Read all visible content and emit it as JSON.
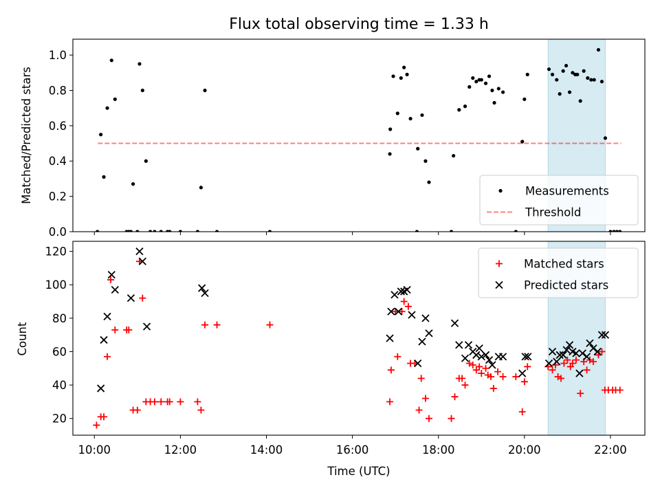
{
  "chart_data": [
    {
      "type": "scatter",
      "title": "Flux total observing time = 1.33 h",
      "xlabel": "",
      "ylabel": "Matched/Predicted stars",
      "xlim": [
        9.5,
        22.8
      ],
      "ylim": [
        0,
        1.09
      ],
      "yticks": [
        "0.0",
        "0.2",
        "0.4",
        "0.6",
        "0.8",
        "1.0"
      ],
      "grid": false,
      "legend_position": "lower-right",
      "shaded_span": {
        "x": [
          20.55,
          21.88
        ],
        "color": "#add8e6"
      },
      "threshold": {
        "name": "Threshold",
        "y": 0.5,
        "x": [
          10.08,
          22.25
        ],
        "color": "#ff0000",
        "style": "dashed"
      },
      "series": [
        {
          "name": "Measurements",
          "marker": "dot",
          "color": "#000000",
          "points": [
            [
              10.07,
              0.0
            ],
            [
              10.15,
              0.55
            ],
            [
              10.22,
              0.31
            ],
            [
              10.3,
              0.7
            ],
            [
              10.4,
              0.97
            ],
            [
              10.48,
              0.75
            ],
            [
              10.75,
              0.0
            ],
            [
              10.8,
              0.0
            ],
            [
              10.85,
              0.0
            ],
            [
              10.9,
              0.27
            ],
            [
              11.0,
              0.0
            ],
            [
              11.05,
              0.95
            ],
            [
              11.12,
              0.8
            ],
            [
              11.2,
              0.4
            ],
            [
              11.3,
              0.0
            ],
            [
              11.4,
              0.0
            ],
            [
              11.55,
              0.0
            ],
            [
              11.7,
              0.0
            ],
            [
              11.75,
              0.0
            ],
            [
              12.0,
              0.0
            ],
            [
              12.4,
              0.0
            ],
            [
              12.48,
              0.25
            ],
            [
              12.57,
              0.8
            ],
            [
              12.85,
              0.0
            ],
            [
              14.08,
              0.0
            ],
            [
              16.87,
              0.44
            ],
            [
              16.88,
              0.58
            ],
            [
              16.95,
              0.88
            ],
            [
              17.05,
              0.67
            ],
            [
              17.13,
              0.87
            ],
            [
              17.2,
              0.93
            ],
            [
              17.27,
              0.89
            ],
            [
              17.35,
              0.64
            ],
            [
              17.5,
              0.0
            ],
            [
              17.52,
              0.47
            ],
            [
              17.62,
              0.66
            ],
            [
              17.7,
              0.4
            ],
            [
              17.78,
              0.28
            ],
            [
              18.3,
              0.0
            ],
            [
              18.35,
              0.43
            ],
            [
              18.48,
              0.69
            ],
            [
              18.62,
              0.71
            ],
            [
              18.72,
              0.82
            ],
            [
              18.8,
              0.87
            ],
            [
              18.88,
              0.85
            ],
            [
              18.95,
              0.86
            ],
            [
              19.0,
              0.86
            ],
            [
              19.1,
              0.84
            ],
            [
              19.18,
              0.88
            ],
            [
              19.25,
              0.8
            ],
            [
              19.3,
              0.73
            ],
            [
              19.4,
              0.81
            ],
            [
              19.5,
              0.79
            ],
            [
              19.8,
              0.0
            ],
            [
              19.95,
              0.51
            ],
            [
              20.0,
              0.75
            ],
            [
              20.07,
              0.89
            ],
            [
              20.57,
              0.92
            ],
            [
              20.65,
              0.89
            ],
            [
              20.75,
              0.86
            ],
            [
              20.82,
              0.78
            ],
            [
              20.9,
              0.91
            ],
            [
              20.97,
              0.94
            ],
            [
              21.05,
              0.79
            ],
            [
              21.12,
              0.9
            ],
            [
              21.18,
              0.89
            ],
            [
              21.23,
              0.89
            ],
            [
              21.3,
              0.74
            ],
            [
              21.38,
              0.91
            ],
            [
              21.47,
              0.87
            ],
            [
              21.55,
              0.86
            ],
            [
              21.62,
              0.86
            ],
            [
              21.72,
              1.03
            ],
            [
              21.8,
              0.85
            ],
            [
              21.88,
              0.53
            ],
            [
              22.0,
              0.0
            ],
            [
              22.08,
              0.0
            ],
            [
              22.15,
              0.0
            ],
            [
              22.22,
              0.0
            ]
          ]
        }
      ]
    },
    {
      "type": "scatter",
      "title": "",
      "xlabel": "Time (UTC)",
      "ylabel": "Count",
      "xlim": [
        9.5,
        22.8
      ],
      "ylim": [
        10,
        126
      ],
      "yticks": [
        "20",
        "40",
        "60",
        "80",
        "100",
        "120"
      ],
      "xticks": [
        {
          "value": 10,
          "label": "10:00"
        },
        {
          "value": 12,
          "label": "12:00"
        },
        {
          "value": 14,
          "label": "14:00"
        },
        {
          "value": 16,
          "label": "16:00"
        },
        {
          "value": 18,
          "label": "18:00"
        },
        {
          "value": 20,
          "label": "20:00"
        },
        {
          "value": 22,
          "label": "22:00"
        }
      ],
      "grid": false,
      "legend_position": "upper-right",
      "shaded_span": {
        "x": [
          20.55,
          21.88
        ],
        "color": "#add8e6"
      },
      "series": [
        {
          "name": "Matched stars",
          "marker": "plus",
          "color": "#ff0000",
          "points": [
            [
              10.05,
              16
            ],
            [
              10.15,
              21
            ],
            [
              10.22,
              21
            ],
            [
              10.3,
              57
            ],
            [
              10.38,
              103
            ],
            [
              10.48,
              73
            ],
            [
              10.75,
              73
            ],
            [
              10.8,
              73
            ],
            [
              10.9,
              25
            ],
            [
              11.0,
              25
            ],
            [
              11.05,
              114
            ],
            [
              11.12,
              92
            ],
            [
              11.2,
              30
            ],
            [
              11.3,
              30
            ],
            [
              11.4,
              30
            ],
            [
              11.55,
              30
            ],
            [
              11.7,
              30
            ],
            [
              11.75,
              30
            ],
            [
              12.0,
              30
            ],
            [
              12.4,
              30
            ],
            [
              12.48,
              25
            ],
            [
              12.57,
              76
            ],
            [
              12.85,
              76
            ],
            [
              14.08,
              76
            ],
            [
              16.87,
              30
            ],
            [
              16.9,
              49
            ],
            [
              17.0,
              84
            ],
            [
              17.05,
              57
            ],
            [
              17.15,
              84
            ],
            [
              17.2,
              90
            ],
            [
              17.3,
              87
            ],
            [
              17.35,
              53
            ],
            [
              17.45,
              53
            ],
            [
              17.55,
              25
            ],
            [
              17.6,
              44
            ],
            [
              17.7,
              32
            ],
            [
              17.78,
              20
            ],
            [
              18.3,
              20
            ],
            [
              18.38,
              33
            ],
            [
              18.48,
              44
            ],
            [
              18.55,
              44
            ],
            [
              18.62,
              40
            ],
            [
              18.72,
              53
            ],
            [
              18.8,
              52
            ],
            [
              18.88,
              49
            ],
            [
              18.95,
              51
            ],
            [
              19.0,
              47
            ],
            [
              19.1,
              50
            ],
            [
              19.15,
              46
            ],
            [
              19.22,
              45
            ],
            [
              19.28,
              38
            ],
            [
              19.38,
              48
            ],
            [
              19.5,
              45
            ],
            [
              19.8,
              45
            ],
            [
              19.95,
              24
            ],
            [
              20.0,
              42
            ],
            [
              20.07,
              51
            ],
            [
              20.55,
              51
            ],
            [
              20.65,
              49
            ],
            [
              20.72,
              52
            ],
            [
              20.78,
              45
            ],
            [
              20.85,
              44
            ],
            [
              20.92,
              53
            ],
            [
              21.0,
              55
            ],
            [
              21.07,
              51
            ],
            [
              21.12,
              53
            ],
            [
              21.2,
              55
            ],
            [
              21.3,
              35
            ],
            [
              21.38,
              54
            ],
            [
              21.45,
              49
            ],
            [
              21.52,
              55
            ],
            [
              21.6,
              54
            ],
            [
              21.72,
              58
            ],
            [
              21.8,
              60
            ],
            [
              21.87,
              37
            ],
            [
              21.95,
              37
            ],
            [
              22.05,
              37
            ],
            [
              22.12,
              37
            ],
            [
              22.22,
              37
            ]
          ]
        },
        {
          "name": "Predicted stars",
          "marker": "x",
          "color": "#000000",
          "points": [
            [
              10.15,
              38
            ],
            [
              10.22,
              67
            ],
            [
              10.3,
              81
            ],
            [
              10.4,
              106
            ],
            [
              10.48,
              97
            ],
            [
              10.85,
              92
            ],
            [
              11.05,
              120
            ],
            [
              11.12,
              114
            ],
            [
              11.22,
              75
            ],
            [
              12.5,
              98
            ],
            [
              12.57,
              95
            ],
            [
              16.87,
              68
            ],
            [
              16.9,
              84
            ],
            [
              16.98,
              94
            ],
            [
              17.07,
              84
            ],
            [
              17.13,
              96
            ],
            [
              17.2,
              96
            ],
            [
              17.27,
              97
            ],
            [
              17.38,
              82
            ],
            [
              17.52,
              53
            ],
            [
              17.62,
              66
            ],
            [
              17.7,
              80
            ],
            [
              17.78,
              71
            ],
            [
              18.38,
              77
            ],
            [
              18.48,
              64
            ],
            [
              18.62,
              56
            ],
            [
              18.7,
              64
            ],
            [
              18.8,
              60
            ],
            [
              18.88,
              58
            ],
            [
              18.95,
              62
            ],
            [
              19.0,
              57
            ],
            [
              19.1,
              58
            ],
            [
              19.18,
              55
            ],
            [
              19.25,
              52
            ],
            [
              19.4,
              57
            ],
            [
              19.5,
              57
            ],
            [
              19.95,
              47
            ],
            [
              20.02,
              57
            ],
            [
              20.08,
              57
            ],
            [
              20.57,
              53
            ],
            [
              20.65,
              60
            ],
            [
              20.75,
              54
            ],
            [
              20.82,
              58
            ],
            [
              20.9,
              58
            ],
            [
              20.98,
              61
            ],
            [
              21.05,
              64
            ],
            [
              21.12,
              60
            ],
            [
              21.2,
              59
            ],
            [
              21.28,
              47
            ],
            [
              21.35,
              59
            ],
            [
              21.45,
              57
            ],
            [
              21.52,
              65
            ],
            [
              21.6,
              62
            ],
            [
              21.7,
              60
            ],
            [
              21.8,
              70
            ],
            [
              21.88,
              70
            ]
          ]
        }
      ]
    }
  ]
}
